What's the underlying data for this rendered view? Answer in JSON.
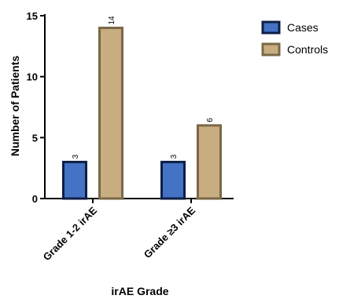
{
  "chart_data": {
    "type": "bar",
    "title": "",
    "xlabel": "irAE Grade",
    "ylabel": "Number of Patients",
    "categories": [
      "Grade 1-2 irAE",
      "Grade ≥3 irAE"
    ],
    "series": [
      {
        "name": "Cases",
        "values": [
          3,
          3
        ],
        "fill": "#4472c4",
        "stroke": "#0d1f44"
      },
      {
        "name": "Controls",
        "values": [
          14,
          6
        ],
        "fill": "#c8ad80",
        "stroke": "#7a6846"
      }
    ],
    "ylim": [
      0,
      15
    ],
    "yticks": [
      0,
      5,
      10,
      15
    ],
    "data_labels": true,
    "grid": false,
    "legend_position": "top-right"
  }
}
